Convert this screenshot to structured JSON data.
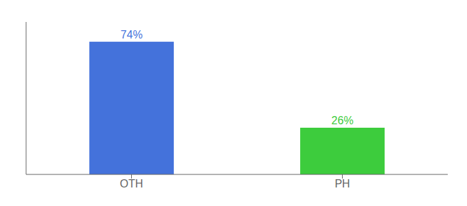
{
  "chart_data": {
    "type": "bar",
    "categories": [
      "OTH",
      "PH"
    ],
    "values": [
      74,
      26
    ],
    "value_labels": [
      "74%",
      "26%"
    ],
    "colors": [
      "#4472db",
      "#3dcc3d"
    ],
    "ylim": [
      0,
      85
    ],
    "yticks": [],
    "data_labels": true,
    "tick_labels": "x",
    "grid": false
  }
}
